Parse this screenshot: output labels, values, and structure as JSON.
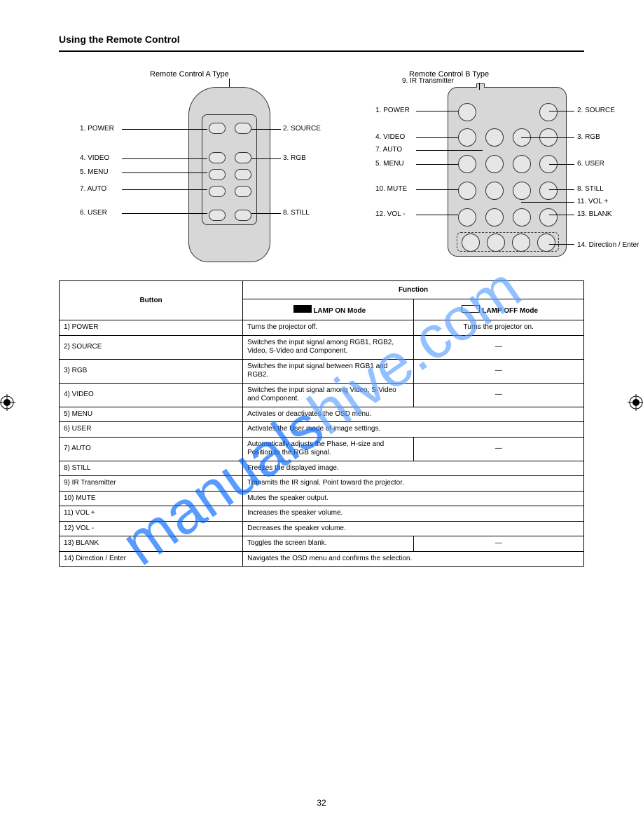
{
  "page_title": "Using the Remote Control",
  "page_number": "32",
  "footer_note": "",
  "diagram": {
    "title_a": "Remote Control A Type",
    "title_b": "Remote Control B Type",
    "a_labels": {
      "l1": "1. POWER",
      "l2": "4. VIDEO",
      "l3": "5. MENU",
      "l4": "7. AUTO",
      "l5": "6. USER",
      "r1": "2. SOURCE",
      "r2": "3. RGB",
      "r3": "8. STILL"
    },
    "b_labels": {
      "l1": "1. POWER",
      "l2": "4. VIDEO",
      "l3": "7. AUTO",
      "l4": "5. MENU",
      "l5": "10. MUTE",
      "l6": "12. VOL -",
      "top": "9. IR Transmitter",
      "r1": "2. SOURCE",
      "r2": "3. RGB",
      "r3": "6. USER",
      "r4": "8. STILL",
      "r5": "11. VOL +",
      "r6": "13. BLANK",
      "r7": "14. Direction / Enter"
    }
  },
  "table": {
    "head_button": "Button",
    "head_function": "Function",
    "sub_on": "LAMP ON Mode",
    "sub_off": "LAMP OFF Mode",
    "rows": [
      {
        "b": "1) POWER",
        "f1": "Turns the projector off.",
        "f2": "Turns the projector on."
      },
      {
        "b": "2) SOURCE",
        "f1": "Switches the input signal among RGB1, RGB2, Video, S-Video and Component.",
        "f2": "—"
      },
      {
        "b": "3) RGB",
        "f1": "Switches the input signal between RGB1 and RGB2.",
        "f2": "—"
      },
      {
        "b": "4) VIDEO",
        "f1": "Switches the input signal among Video, S-Video and Component.",
        "f2": "—"
      },
      {
        "b": "5) MENU",
        "f1_span": "Activates or deactivates the OSD menu."
      },
      {
        "b": "6) USER",
        "f1_span": "Activates the User mode of image settings."
      },
      {
        "b": "7) AUTO",
        "f1": "Automatically adjusts the Phase, H-size and Position to the RGB signal.",
        "f2": "—"
      },
      {
        "b": "8) STILL",
        "f1_span": "Freezes the displayed image."
      },
      {
        "b": "9) IR Transmitter",
        "f1_span": "Transmits the IR signal. Point toward the projector."
      },
      {
        "b": "10) MUTE",
        "f1_span": "Mutes the speaker output."
      },
      {
        "b": "11) VOL +",
        "f1_span": "Increases the speaker volume."
      },
      {
        "b": "12) VOL -",
        "f1_span": "Decreases the speaker volume."
      },
      {
        "b": "13) BLANK",
        "f1": "Toggles the screen blank.",
        "f2": "—"
      },
      {
        "b": "14) Direction / Enter",
        "f1_span": "Navigates the OSD menu and confirms the selection."
      }
    ]
  },
  "watermark": {
    "part1": "manuals",
    "part2": "hive.com"
  },
  "colors": {
    "rule": "#000000",
    "diagram_fill": "#d7d7d7",
    "watermark1": "#0066ff",
    "watermark2": "#5aa0ff"
  }
}
